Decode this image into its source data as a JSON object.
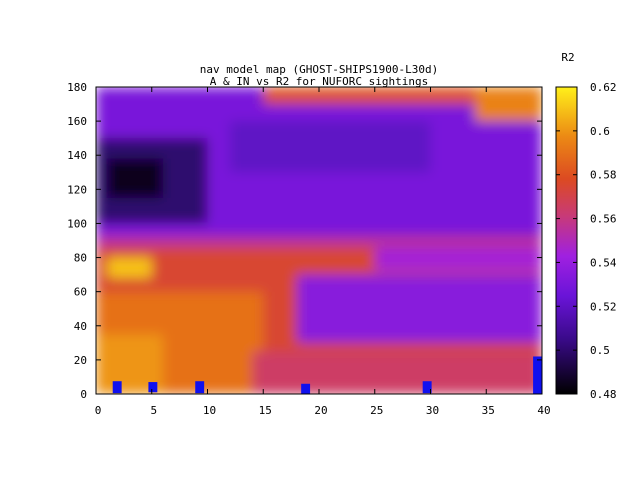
{
  "chart_data": {
    "type": "heatmap",
    "title_line1": "nav model map (GHOST-SHIPS1900-L30d)",
    "title_line2": "A & IN vs R2 for NUFORC sightings",
    "colorbar_label": "R2",
    "xlim": [
      0,
      40
    ],
    "ylim": [
      0,
      180
    ],
    "zlim": [
      0.48,
      0.62
    ],
    "x_ticks": [
      0,
      5,
      10,
      15,
      20,
      25,
      30,
      35,
      40
    ],
    "y_ticks": [
      0,
      20,
      40,
      60,
      80,
      100,
      120,
      140,
      160,
      180
    ],
    "z_ticks": [
      "0.48",
      "0.5",
      "0.52",
      "0.54",
      "0.56",
      "0.58",
      "0.6",
      "0.62"
    ],
    "palette": "gnuplot black-blue-purple-red-orange-yellow",
    "regions": [
      {
        "x": [
          0,
          40
        ],
        "y": [
          0,
          180
        ],
        "value": 0.57
      },
      {
        "x": [
          0,
          40
        ],
        "y": [
          0,
          90
        ],
        "value": 0.575
      },
      {
        "x": [
          0,
          15
        ],
        "y": [
          0,
          60
        ],
        "value": 0.59
      },
      {
        "x": [
          0,
          6
        ],
        "y": [
          0,
          35
        ],
        "value": 0.6
      },
      {
        "x": [
          1,
          5
        ],
        "y": [
          68,
          80
        ],
        "value": 0.61
      },
      {
        "x": [
          0,
          40
        ],
        "y": [
          92,
          180
        ],
        "value": 0.53
      },
      {
        "x": [
          0,
          10
        ],
        "y": [
          100,
          150
        ],
        "value": 0.5
      },
      {
        "x": [
          1,
          6
        ],
        "y": [
          115,
          138
        ],
        "value": 0.485
      },
      {
        "x": [
          12,
          30
        ],
        "y": [
          130,
          160
        ],
        "value": 0.52
      },
      {
        "x": [
          18,
          40
        ],
        "y": [
          30,
          70
        ],
        "value": 0.535
      },
      {
        "x": [
          25,
          40
        ],
        "y": [
          72,
          88
        ],
        "value": 0.545
      },
      {
        "x": [
          14,
          40
        ],
        "y": [
          0,
          25
        ],
        "value": 0.565
      },
      {
        "x": [
          15,
          40
        ],
        "y": [
          170,
          180
        ],
        "value": 0.58
      },
      {
        "x": [
          34,
          40
        ],
        "y": [
          160,
          180
        ],
        "value": 0.595
      },
      {
        "x": [
          0,
          40
        ],
        "y": [
          86,
          93
        ],
        "value": 0.555
      }
    ],
    "markers": [
      {
        "x": 1.9,
        "y": 4,
        "height": 7,
        "width": 0.8
      },
      {
        "x": 5.1,
        "y": 4,
        "height": 6,
        "width": 0.8
      },
      {
        "x": 9.3,
        "y": 4,
        "height": 7,
        "width": 0.8
      },
      {
        "x": 18.8,
        "y": 3,
        "height": 6,
        "width": 0.8
      },
      {
        "x": 29.7,
        "y": 4,
        "height": 7,
        "width": 0.8
      },
      {
        "x": 39.6,
        "y": 11,
        "height": 22,
        "width": 0.8
      }
    ],
    "marker_color": "#1010ee"
  }
}
